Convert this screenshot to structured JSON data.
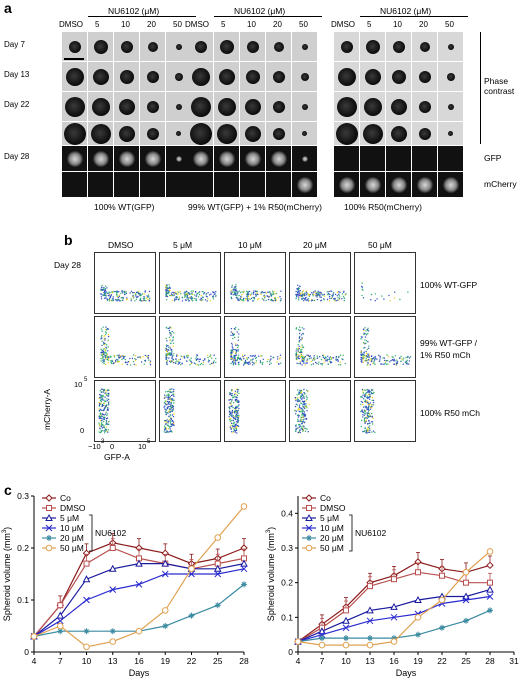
{
  "panel_a": {
    "letter": "a",
    "col_headers": [
      "DMSO",
      "5",
      "10",
      "20",
      "50"
    ],
    "group_header": "NU6102 (μM)",
    "row_labels": [
      "Day 7",
      "Day 13",
      "Day 22",
      "Day 28"
    ],
    "right_labels": {
      "phase": "Phase\ncontrast",
      "gfp": "GFP",
      "mcherry": "mCherry"
    },
    "group_footers": [
      "100% WT(GFP)",
      "99% WT(GFP) + 1% R50(mCherry)",
      "100% R50(mCherry)"
    ]
  },
  "panel_b": {
    "letter": "b",
    "col_headers": [
      "DMSO",
      "5 μM",
      "10 μM",
      "20 μM",
      "50 μM"
    ],
    "day_label": "Day 28",
    "row_labels": [
      "100% WT-GFP",
      "99% WT-GFP /",
      "1% R50 mCh",
      "100% R50 mCh"
    ],
    "y_axis_label": "mCherry-A",
    "x_axis_label": "GFP-A",
    "y_ticks": [
      "10",
      "5",
      "0"
    ],
    "x_ticks": [
      "−10",
      "3",
      "0",
      "10",
      "5"
    ]
  },
  "panel_c": {
    "letter": "c",
    "legend_labels": [
      "Co",
      "DMSO",
      "5 μM",
      "10 μM",
      "20 μM",
      "50 μM"
    ],
    "legend_group": "NU6102",
    "xlabel": "Days",
    "ylabel": "Spheroid volume (mm",
    "ylabel_sup": "3",
    "ylabel_close": ")"
  },
  "chart_data": [
    {
      "type": "line",
      "x": [
        4,
        7,
        10,
        13,
        16,
        19,
        22,
        25,
        28
      ],
      "xlim": [
        4,
        28
      ],
      "ylim": [
        0,
        0.3
      ],
      "xticks": [
        4,
        7,
        10,
        13,
        16,
        19,
        22,
        25,
        28
      ],
      "yticks": [
        0,
        0.1,
        0.2,
        0.3
      ],
      "xlabel": "Days",
      "ylabel": "Spheroid volume (mm3)",
      "series": [
        {
          "name": "Co",
          "color": "#8b1a1a",
          "marker": "diamond",
          "values": [
            0.03,
            0.09,
            0.19,
            0.21,
            0.2,
            0.19,
            0.17,
            0.18,
            0.2
          ]
        },
        {
          "name": "DMSO",
          "color": "#b85050",
          "marker": "square",
          "values": [
            0.03,
            0.09,
            0.17,
            0.2,
            0.18,
            0.17,
            0.16,
            0.17,
            0.18
          ]
        },
        {
          "name": "5 μM",
          "color": "#1a1a9e",
          "marker": "triangle",
          "values": [
            0.03,
            0.07,
            0.14,
            0.16,
            0.17,
            0.17,
            0.16,
            0.16,
            0.17
          ]
        },
        {
          "name": "10 μM",
          "color": "#2a2ad0",
          "marker": "x",
          "values": [
            0.03,
            0.06,
            0.1,
            0.12,
            0.13,
            0.15,
            0.15,
            0.15,
            0.16
          ]
        },
        {
          "name": "20 μM",
          "color": "#3a8aa0",
          "marker": "star",
          "values": [
            0.03,
            0.04,
            0.04,
            0.04,
            0.04,
            0.05,
            0.07,
            0.09,
            0.13
          ]
        },
        {
          "name": "50 μM",
          "color": "#e0a050",
          "marker": "circle",
          "values": [
            0.03,
            0.05,
            0.01,
            0.02,
            0.04,
            0.08,
            0.16,
            0.22,
            0.28
          ]
        }
      ]
    },
    {
      "type": "line",
      "x": [
        4,
        7,
        10,
        13,
        16,
        19,
        22,
        25,
        28
      ],
      "xlim": [
        4,
        31
      ],
      "ylim": [
        0,
        0.45
      ],
      "xticks": [
        4,
        7,
        10,
        13,
        16,
        19,
        22,
        25,
        28,
        31
      ],
      "yticks": [
        0,
        0.1,
        0.2,
        0.3,
        0.4
      ],
      "xlabel": "Days",
      "ylabel": "Spheroid volume (mm3)",
      "series": [
        {
          "name": "Co",
          "color": "#8b1a1a",
          "marker": "diamond",
          "values": [
            0.03,
            0.08,
            0.13,
            0.2,
            0.22,
            0.26,
            0.24,
            0.23,
            0.25
          ]
        },
        {
          "name": "DMSO",
          "color": "#b85050",
          "marker": "square",
          "values": [
            0.03,
            0.07,
            0.12,
            0.19,
            0.21,
            0.23,
            0.22,
            0.2,
            0.2
          ]
        },
        {
          "name": "5 μM",
          "color": "#1a1a9e",
          "marker": "triangle",
          "values": [
            0.03,
            0.06,
            0.09,
            0.12,
            0.13,
            0.15,
            0.16,
            0.16,
            0.18
          ]
        },
        {
          "name": "10 μM",
          "color": "#2a2ad0",
          "marker": "x",
          "values": [
            0.03,
            0.05,
            0.07,
            0.09,
            0.1,
            0.11,
            0.14,
            0.15,
            0.16
          ]
        },
        {
          "name": "20 μM",
          "color": "#3a8aa0",
          "marker": "star",
          "values": [
            0.03,
            0.04,
            0.04,
            0.04,
            0.04,
            0.05,
            0.07,
            0.09,
            0.12
          ]
        },
        {
          "name": "50 μM",
          "color": "#e0a050",
          "marker": "circle",
          "values": [
            0.03,
            0.02,
            0.02,
            0.02,
            0.03,
            0.1,
            0.15,
            0.23,
            0.29
          ]
        }
      ]
    }
  ]
}
